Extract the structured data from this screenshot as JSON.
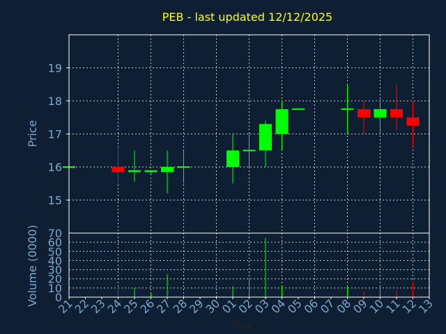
{
  "chart_data": {
    "type": "candlestick",
    "title": "PEB - last updated 12/12/2025",
    "xlabel": "Day",
    "categories": [
      "21",
      "22",
      "23",
      "24",
      "25",
      "26",
      "27",
      "28",
      "29",
      "30",
      "01",
      "02",
      "03",
      "04",
      "05",
      "06",
      "07",
      "08",
      "09",
      "10",
      "11",
      "12",
      "13"
    ],
    "price_panel": {
      "ylabel": "Price",
      "ylim": [
        14,
        20
      ],
      "yticks": [
        15,
        16,
        17,
        18,
        19
      ],
      "grid": true,
      "candles": [
        {
          "x": "21",
          "open": 16.0,
          "high": 16.0,
          "low": 16.0,
          "close": 16.0
        },
        {
          "x": "24",
          "open": 16.0,
          "high": 16.6,
          "low": 15.5,
          "close": 15.85
        },
        {
          "x": "25",
          "open": 15.85,
          "high": 16.5,
          "low": 15.55,
          "close": 15.9
        },
        {
          "x": "26",
          "open": 15.85,
          "high": 15.9,
          "low": 15.8,
          "close": 15.9
        },
        {
          "x": "27",
          "open": 15.85,
          "high": 16.5,
          "low": 15.2,
          "close": 16.0
        },
        {
          "x": "28",
          "open": 16.0,
          "high": 16.5,
          "low": 15.5,
          "close": 16.0
        },
        {
          "x": "01",
          "open": 16.0,
          "high": 17.0,
          "low": 15.5,
          "close": 16.5
        },
        {
          "x": "02",
          "open": 16.5,
          "high": 17.0,
          "low": 16.0,
          "close": 16.5
        },
        {
          "x": "03",
          "open": 16.5,
          "high": 17.4,
          "low": 16.0,
          "close": 17.3
        },
        {
          "x": "04",
          "open": 17.0,
          "high": 18.0,
          "low": 16.5,
          "close": 17.75
        },
        {
          "x": "05",
          "open": 17.75,
          "high": 17.75,
          "low": 17.75,
          "close": 17.75
        },
        {
          "x": "08",
          "open": 17.75,
          "high": 18.5,
          "low": 17.0,
          "close": 17.75
        },
        {
          "x": "09",
          "open": 17.75,
          "high": 18.0,
          "low": 17.0,
          "close": 17.5
        },
        {
          "x": "10",
          "open": 17.5,
          "high": 18.05,
          "low": 17.0,
          "close": 17.75
        },
        {
          "x": "11",
          "open": 17.75,
          "high": 18.5,
          "low": 17.1,
          "close": 17.5
        },
        {
          "x": "12",
          "open": 17.5,
          "high": 18.0,
          "low": 16.6,
          "close": 17.25
        }
      ]
    },
    "volume_panel": {
      "ylabel": "Volume (0000)",
      "ylim": [
        0,
        70
      ],
      "yticks": [
        0,
        10,
        20,
        30,
        40,
        50,
        60,
        70
      ],
      "grid": true,
      "bars": [
        {
          "x": "21",
          "value": 0
        },
        {
          "x": "24",
          "value": 10
        },
        {
          "x": "25",
          "value": 10
        },
        {
          "x": "26",
          "value": 4
        },
        {
          "x": "27",
          "value": 25
        },
        {
          "x": "28",
          "value": 2
        },
        {
          "x": "01",
          "value": 12
        },
        {
          "x": "02",
          "value": 21
        },
        {
          "x": "03",
          "value": 65
        },
        {
          "x": "04",
          "value": 13
        },
        {
          "x": "05",
          "value": 0
        },
        {
          "x": "08",
          "value": 12
        },
        {
          "x": "09",
          "value": 6
        },
        {
          "x": "10",
          "value": 12
        },
        {
          "x": "11",
          "value": 7
        },
        {
          "x": "12",
          "value": 17
        }
      ]
    },
    "colors": {
      "background": "#0f1f33",
      "up": "#00ff00",
      "down": "#ff0000",
      "title": "#ffff00",
      "axis_text": "#7fa6cc",
      "grid": "#c8c8c8",
      "frame": "#ffffff"
    }
  }
}
